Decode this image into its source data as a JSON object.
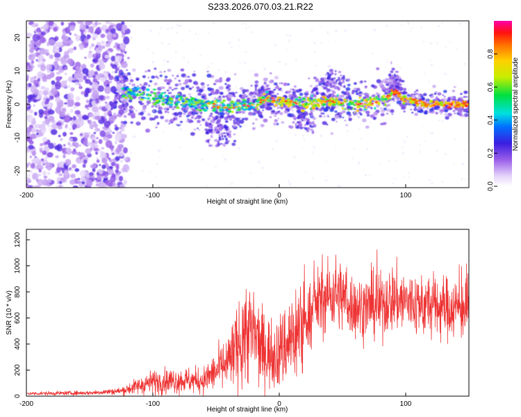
{
  "title": "S233.2026.070.03.21.R22",
  "chart_data": [
    {
      "type": "heatmap",
      "xlabel": "Height of straight line (km)",
      "ylabel": "Frequency (Hz)",
      "xlim": [
        -200,
        150
      ],
      "ylim": [
        -25,
        25
      ],
      "xticks": [
        -200,
        -100,
        0,
        100
      ],
      "yticks": [
        -20,
        -10,
        0,
        10,
        20
      ],
      "colorbar": {
        "label": "Normalized spectral amplitude",
        "range": [
          0,
          1
        ],
        "ticks": [
          0.0,
          0.2,
          0.4,
          0.6,
          0.8
        ],
        "tick_labels": [
          "0.0",
          "0.2",
          "0.4",
          "0.6",
          "0.8"
        ]
      },
      "ridge_center_hz": [
        {
          "x": -120,
          "y": 4
        },
        {
          "x": -100,
          "y": 2
        },
        {
          "x": -80,
          "y": 1
        },
        {
          "x": -60,
          "y": 0
        },
        {
          "x": -40,
          "y": -1
        },
        {
          "x": -20,
          "y": 0
        },
        {
          "x": -10,
          "y": 2
        },
        {
          "x": 0,
          "y": 1
        },
        {
          "x": 20,
          "y": 0
        },
        {
          "x": 40,
          "y": 1
        },
        {
          "x": 60,
          "y": 0
        },
        {
          "x": 80,
          "y": 1
        },
        {
          "x": 92,
          "y": 4
        },
        {
          "x": 100,
          "y": 1
        },
        {
          "x": 120,
          "y": 0
        },
        {
          "x": 150,
          "y": 0
        }
      ]
    },
    {
      "type": "line",
      "xlabel": "Height of straight line (km)",
      "ylabel": "SNR (10 * v/v)",
      "xlim": [
        -200,
        150
      ],
      "ylim": [
        0,
        1280
      ],
      "xticks": [
        -200,
        -100,
        0,
        100
      ],
      "yticks": [
        0,
        200,
        400,
        600,
        800,
        1000,
        1200
      ],
      "color": "#ee3333",
      "envelope": [
        {
          "x": -200,
          "y": 20
        },
        {
          "x": -150,
          "y": 25
        },
        {
          "x": -125,
          "y": 40
        },
        {
          "x": -100,
          "y": 110
        },
        {
          "x": -80,
          "y": 120
        },
        {
          "x": -60,
          "y": 120
        },
        {
          "x": -40,
          "y": 260
        },
        {
          "x": -25,
          "y": 520
        },
        {
          "x": -10,
          "y": 330
        },
        {
          "x": 0,
          "y": 340
        },
        {
          "x": 20,
          "y": 560
        },
        {
          "x": 30,
          "y": 720
        },
        {
          "x": 45,
          "y": 800
        },
        {
          "x": 60,
          "y": 680
        },
        {
          "x": 80,
          "y": 700
        },
        {
          "x": 90,
          "y": 750
        },
        {
          "x": 110,
          "y": 700
        },
        {
          "x": 130,
          "y": 680
        },
        {
          "x": 150,
          "y": 680
        }
      ]
    }
  ]
}
